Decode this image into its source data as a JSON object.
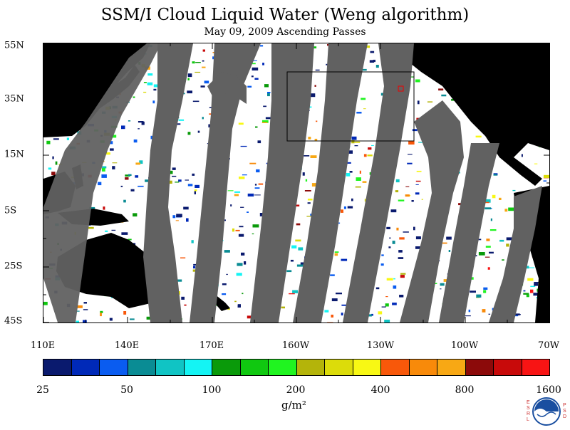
{
  "title": "SSM/I Cloud Liquid Water (Weng algorithm)",
  "subtitle": "May 09, 2009  Ascending Passes",
  "lat_labels": [
    "55N",
    "35N",
    "15N",
    "5S",
    "25S",
    "45S"
  ],
  "lon_labels": [
    "110E",
    "140E",
    "170E",
    "160W",
    "130W",
    "100W",
    "70W"
  ],
  "colorbar": {
    "colors": [
      "#0a1a6e",
      "#0029b8",
      "#0a5cf0",
      "#0a8c94",
      "#10c4c4",
      "#14f4f4",
      "#0a9a0a",
      "#10c810",
      "#20f420",
      "#b4b40a",
      "#dcdc0a",
      "#f8f814",
      "#f8580a",
      "#f88a0a",
      "#f8a814",
      "#8c0a0a",
      "#c80a0a",
      "#f81414"
    ],
    "labels": [
      "25",
      "50",
      "100",
      "200",
      "400",
      "800",
      "1600"
    ]
  },
  "unit": "g/m²",
  "logo": {
    "left_letters": "ESRL",
    "right_letters": "PSD",
    "center": "NOAA"
  }
}
